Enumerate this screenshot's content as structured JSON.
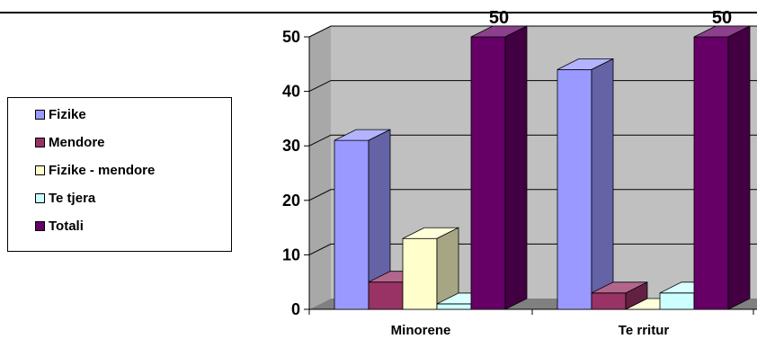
{
  "chart_data": {
    "type": "bar",
    "categories": [
      "Minorene",
      "Te rritur"
    ],
    "series": [
      {
        "name": "Fizike",
        "values": [
          31,
          44
        ],
        "color": "#9999ff"
      },
      {
        "name": "Mendore",
        "values": [
          5,
          3
        ],
        "color": "#993366"
      },
      {
        "name": "Fizike - mendore",
        "values": [
          13,
          0
        ],
        "color": "#ffffcc"
      },
      {
        "name": "Te tjera",
        "values": [
          1,
          3
        ],
        "color": "#ccffff"
      },
      {
        "name": "Totali",
        "values": [
          50,
          50
        ],
        "color": "#660066"
      }
    ],
    "ylim": [
      0,
      50
    ],
    "yticks": [
      "0",
      "10",
      "20",
      "30",
      "40",
      "50"
    ],
    "data_labels": [
      {
        "category": "Minorene",
        "series": "Totali",
        "text": "50"
      },
      {
        "category": "Te rritur",
        "series": "Totali",
        "text": "50"
      }
    ],
    "grid": true,
    "legend_position": "left",
    "plot_background": "#c0c0c0",
    "title": "",
    "xlabel": "",
    "ylabel": ""
  }
}
